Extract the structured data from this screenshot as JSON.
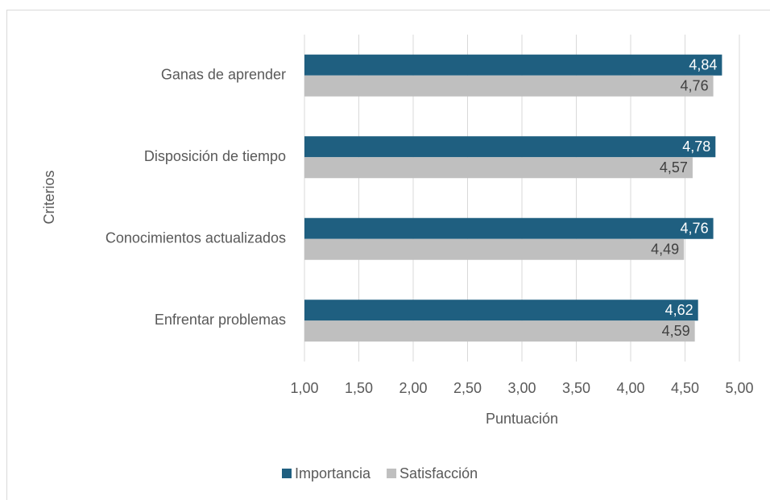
{
  "chart_data": {
    "type": "bar",
    "orientation": "horizontal",
    "x_label": "Puntuación",
    "y_label": "Criterios",
    "categories": [
      "Ganas de aprender",
      "Disposición de tiempo",
      "Conocimientos actualizados",
      "Enfrentar problemas"
    ],
    "series": [
      {
        "name": "Importancia",
        "color": "#1f5f80",
        "values": [
          4.84,
          4.78,
          4.76,
          4.62
        ],
        "value_labels": [
          "4,84",
          "4,78",
          "4,76",
          "4,62"
        ]
      },
      {
        "name": "Satisfacción",
        "color": "#bfbfbf",
        "values": [
          4.76,
          4.57,
          4.49,
          4.59
        ],
        "value_labels": [
          "4,76",
          "4,57",
          "4,49",
          "4,59"
        ]
      }
    ],
    "xlim": [
      1,
      5
    ],
    "xticks": [
      {
        "value": 1,
        "label": "1,00"
      },
      {
        "value": 1.5,
        "label": "1,50"
      },
      {
        "value": 2,
        "label": "2,00"
      },
      {
        "value": 2.5,
        "label": "2,50"
      },
      {
        "value": 3,
        "label": "3,00"
      },
      {
        "value": 3.5,
        "label": "3,50"
      },
      {
        "value": 4,
        "label": "4,00"
      },
      {
        "value": 4.5,
        "label": "4,50"
      },
      {
        "value": 5,
        "label": "5,00"
      }
    ],
    "grid": true,
    "legend": "bottom"
  }
}
